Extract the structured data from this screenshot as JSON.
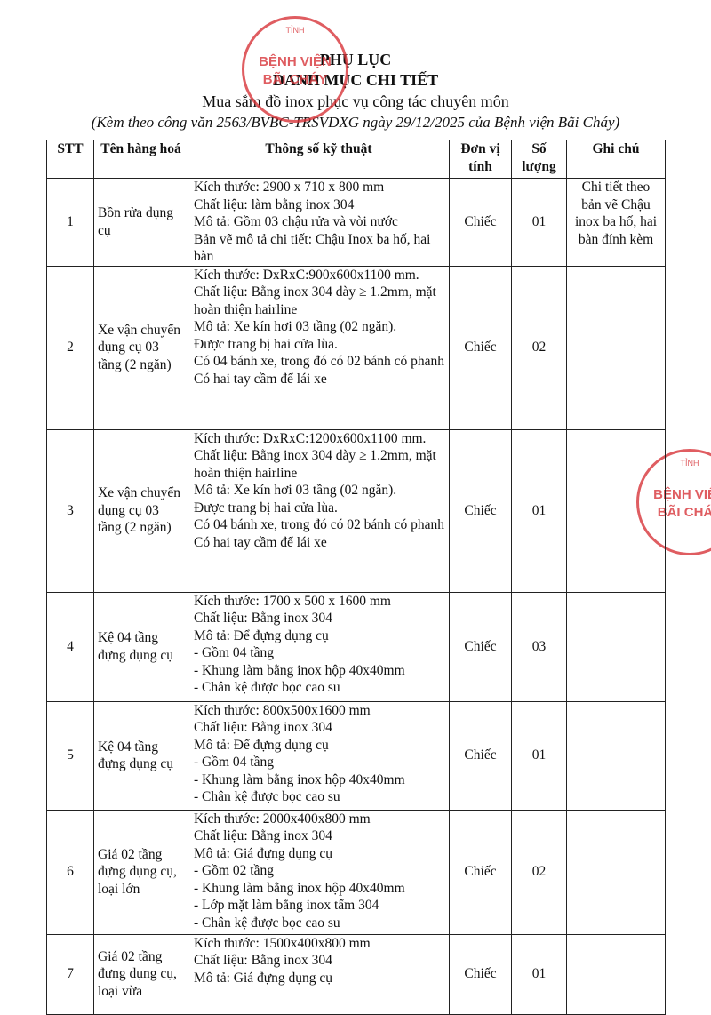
{
  "header": {
    "title": "PHỤ LỤC",
    "subtitle": "DANH MỤC CHI TIẾT",
    "purpose": "Mua sắm đồ inox phục vụ công tác chuyên môn",
    "reference": "(Kèm theo công văn 2563/BVBC-TRSVDXG ngày 29/12/2025 của Bệnh viện Bãi Cháy)"
  },
  "stamp": {
    "top": "TỈNH",
    "line1": "BỆNH VIỆN",
    "line2": "BÃI CHÁY"
  },
  "table": {
    "columns": [
      "STT",
      "Tên hàng hoá",
      "Thông số kỹ thuật",
      "Đơn vị tính",
      "Số lượng",
      "Ghi chú"
    ],
    "rows": [
      {
        "stt": "1",
        "name": "Bồn rửa dụng cụ",
        "spec": [
          "Kích thước: 2900 x 710 x 800 mm",
          "Chất liệu: làm bằng inox 304",
          "Mô tả: Gồm 03 chậu rửa và vòi nước",
          "Bản vẽ mô tả chi tiết: Chậu Inox ba hố, hai bàn"
        ],
        "unit": "Chiếc",
        "qty": "01",
        "note": "Chi tiết theo bản vẽ Chậu inox ba hố, hai bàn đính kèm"
      },
      {
        "stt": "2",
        "name": "Xe vận chuyển dụng cụ 03 tầng (2 ngăn)",
        "spec": [
          "Kích thước: DxRxC:900x600x1100 mm.",
          "Chất liệu: Bằng inox 304 dày ≥ 1.2mm, mặt hoàn thiện hairline",
          "Mô tả: Xe kín hơi  03 tầng (02 ngăn).",
          "Được trang bị hai cửa lùa.",
          "Có 04 bánh xe, trong đó có 02 bánh có phanh",
          "Có hai tay cầm để lái xe"
        ],
        "unit": "Chiếc",
        "qty": "02",
        "note": null
      },
      {
        "stt": "3",
        "name": "Xe vận chuyển dụng cụ 03 tầng (2 ngăn)",
        "spec": [
          "Kích thước: DxRxC:1200x600x1100 mm.",
          "Chất liệu: Bằng inox 304 dày ≥ 1.2mm, mặt hoàn thiện hairline",
          "Mô tả: Xe kín hơi  03 tầng (02 ngăn).",
          "Được trang bị hai cửa lùa.",
          "Có 04 bánh xe, trong đó có 02 bánh có phanh",
          "Có hai tay cầm để lái xe"
        ],
        "unit": "Chiếc",
        "qty": "01",
        "note": null
      },
      {
        "stt": "4",
        "name": "Kệ 04 tầng đựng dụng cụ",
        "spec": [
          "Kích thước: 1700 x 500 x 1600 mm",
          "Chất liệu: Bằng inox 304",
          "Mô tả: Để đựng dụng cụ",
          "- Gồm 04 tầng",
          "- Khung làm bằng inox hộp 40x40mm",
          "- Chân kệ được bọc cao su"
        ],
        "unit": "Chiếc",
        "qty": "03",
        "note": null
      },
      {
        "stt": "5",
        "name": "Kệ 04 tầng đựng dụng cụ",
        "spec": [
          "Kích thước: 800x500x1600 mm",
          "Chất liệu: Bằng inox 304",
          "Mô tả: Để đựng dụng cụ",
          "- Gồm 04 tầng",
          "- Khung làm bằng inox hộp 40x40mm",
          "- Chân kệ được bọc cao su"
        ],
        "unit": "Chiếc",
        "qty": "01",
        "note": null
      },
      {
        "stt": "6",
        "name": "Giá 02 tầng đựng dụng cụ, loại lớn",
        "spec": [
          "Kích thước: 2000x400x800 mm",
          "Chất liệu: Bằng inox 304",
          "Mô tả: Giá đựng dụng cụ",
          "- Gồm 02 tầng",
          "- Khung làm bằng inox hộp 40x40mm",
          "- Lớp mặt làm bằng inox tấm 304",
          "- Chân kệ được bọc cao su"
        ],
        "unit": "Chiếc",
        "qty": "02",
        "note": null
      },
      {
        "stt": "7",
        "name": "Giá 02 tầng đựng dụng cụ, loại vừa",
        "spec": [
          "Kích thước: 1500x400x800 mm",
          "Chất liệu: Bằng inox 304",
          "Mô tả: Giá đựng dụng cụ"
        ],
        "unit": "Chiếc",
        "qty": "01",
        "note": null
      }
    ]
  }
}
